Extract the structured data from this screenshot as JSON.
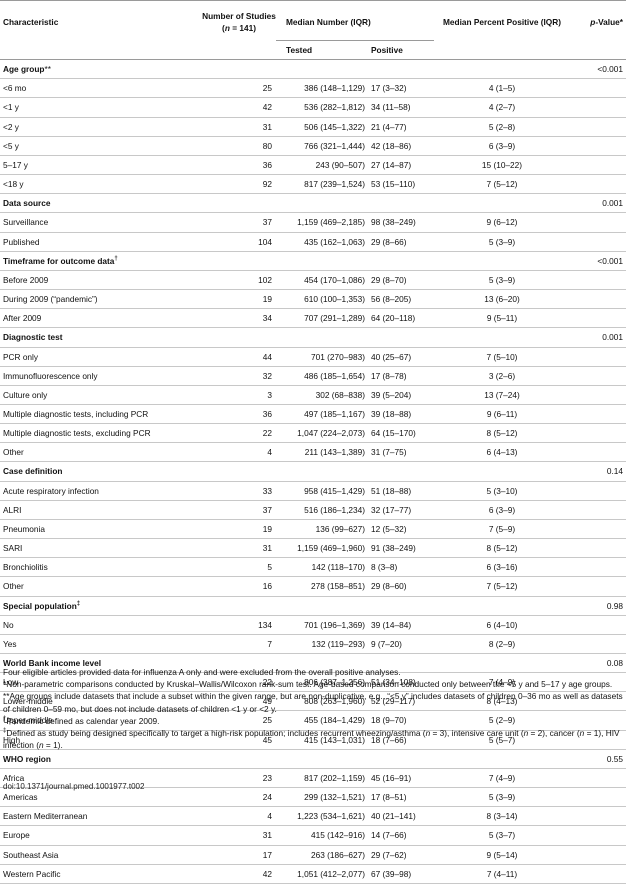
{
  "header": {
    "characteristic": "Characteristic",
    "studies_line1": "Number of Studies",
    "studies_line2_pre": "(",
    "studies_line2_n": "n",
    "studies_line2_post": " = 141)",
    "median_number": "Median Number (IQR)",
    "tested": "Tested",
    "positive": "Positive",
    "median_percent": "Median Percent Positive (IQR)",
    "pvalue_p": "p",
    "pvalue_rest": "-Value*"
  },
  "sections": [
    {
      "title": "Age group",
      "mark": "**",
      "pvalue": "<0.001",
      "rows": [
        {
          "label": "<6 mo",
          "n": "25",
          "tested": "386 (148–1,129)",
          "positive": "17 (3–32)",
          "pct": "4 (1–5)"
        },
        {
          "label": "<1 y",
          "n": "42",
          "tested": "536 (282–1,812)",
          "positive": "34 (11–58)",
          "pct": "4 (2–7)"
        },
        {
          "label": "<2 y",
          "n": "31",
          "tested": "506 (145–1,322)",
          "positive": "21 (4–77)",
          "pct": "5 (2–8)"
        },
        {
          "label": "<5 y",
          "n": "80",
          "tested": "766 (321–1,444)",
          "positive": "42 (18–86)",
          "pct": "6 (3–9)"
        },
        {
          "label": "5–17 y",
          "n": "36",
          "tested": "243 (90–507)",
          "positive": "27 (14–87)",
          "pct": "15 (10–22)"
        },
        {
          "label": "<18 y",
          "n": "92",
          "tested": "817 (239–1,524)",
          "positive": "53 (15–110)",
          "pct": "7 (5–12)"
        }
      ]
    },
    {
      "title": "Data source",
      "mark": "",
      "pvalue": "0.001",
      "rows": [
        {
          "label": "Surveillance",
          "n": "37",
          "tested": "1,159 (469–2,185)",
          "positive": "98 (38–249)",
          "pct": "9 (6–12)"
        },
        {
          "label": "Published",
          "n": "104",
          "tested": "435 (162–1,063)",
          "positive": "29 (8–66)",
          "pct": "5 (3–9)"
        }
      ]
    },
    {
      "title": "Timeframe for outcome data",
      "mark": "†",
      "pvalue": "<0.001",
      "rows": [
        {
          "label": "Before 2009",
          "n": "102",
          "tested": "454 (170–1,086)",
          "positive": "29 (8–70)",
          "pct": "5 (3–9)"
        },
        {
          "label": "During 2009 (“pandemic”)",
          "n": "19",
          "tested": "610 (100–1,353)",
          "positive": "56 (8–205)",
          "pct": "13 (6–20)"
        },
        {
          "label": "After 2009",
          "n": "34",
          "tested": "707 (291–1,289)",
          "positive": "64 (20–118)",
          "pct": "9 (5–11)"
        }
      ]
    },
    {
      "title": "Diagnostic test",
      "mark": "",
      "pvalue": "0.001",
      "rows": [
        {
          "label": "PCR only",
          "n": "44",
          "tested": "701 (270–983)",
          "positive": "40 (25–67)",
          "pct": "7 (5–10)"
        },
        {
          "label": "Immunofluorescence only",
          "n": "32",
          "tested": "486 (185–1,654)",
          "positive": "17 (8–78)",
          "pct": "3 (2–6)"
        },
        {
          "label": "Culture only",
          "n": "3",
          "tested": "302 (68–838)",
          "positive": "39 (5–204)",
          "pct": "13 (7–24)"
        },
        {
          "label": "Multiple diagnostic tests, including PCR",
          "n": "36",
          "tested": "497 (185–1,167)",
          "positive": "39 (18–88)",
          "pct": "9 (6–11)"
        },
        {
          "label": "Multiple diagnostic tests, excluding PCR",
          "n": "22",
          "tested": "1,047 (224–2,073)",
          "positive": "64 (15–170)",
          "pct": "8 (5–12)"
        },
        {
          "label": "Other",
          "n": "4",
          "tested": "211 (143–1,389)",
          "positive": "31 (7–75)",
          "pct": "6 (4–13)"
        }
      ]
    },
    {
      "title": "Case definition",
      "mark": "",
      "pvalue": "0.14",
      "rows": [
        {
          "label": "Acute respiratory infection",
          "n": "33",
          "tested": "958 (415–1,429)",
          "positive": "51 (18–88)",
          "pct": "5 (3–10)"
        },
        {
          "label": "ALRI",
          "n": "37",
          "tested": "516 (186–1,234)",
          "positive": "32 (17–77)",
          "pct": "6 (3–9)"
        },
        {
          "label": "Pneumonia",
          "n": "19",
          "tested": "136 (99–627)",
          "positive": "12 (5–32)",
          "pct": "7 (5–9)"
        },
        {
          "label": "SARI",
          "n": "31",
          "tested": "1,159 (469–1,960)",
          "positive": "91 (38–249)",
          "pct": "8 (5–12)"
        },
        {
          "label": "Bronchiolitis",
          "n": "5",
          "tested": "142 (118–170)",
          "positive": "8 (3–8)",
          "pct": "6 (3–16)"
        },
        {
          "label": "Other",
          "n": "16",
          "tested": "278 (158–851)",
          "positive": "29 (8–60)",
          "pct": "7 (5–12)"
        }
      ]
    },
    {
      "title": "Special population",
      "mark": "‡",
      "pvalue": "0.98",
      "rows": [
        {
          "label": "No",
          "n": "134",
          "tested": "701 (196–1,369)",
          "positive": "39 (14–84)",
          "pct": "6 (4–10)"
        },
        {
          "label": "Yes",
          "n": "7",
          "tested": "132 (119–293)",
          "positive": "9 (7–20)",
          "pct": "8 (2–9)"
        }
      ]
    },
    {
      "title": "World Bank income level",
      "mark": "",
      "pvalue": "0.08",
      "rows": [
        {
          "label": "Low",
          "n": "22",
          "tested": "806 (387–1,256)",
          "positive": "51 (34–108)",
          "pct": "7 (4–9)"
        },
        {
          "label": "Lower-middle",
          "n": "49",
          "tested": "808 (263–1,960)",
          "positive": "52 (29–117)",
          "pct": "8 (4–13)"
        },
        {
          "label": "Upper-middle",
          "n": "25",
          "tested": "455 (184–1,429)",
          "positive": "18 (9–70)",
          "pct": "5 (2–9)"
        },
        {
          "label": "High",
          "n": "45",
          "tested": "415 (143–1,031)",
          "positive": "18 (7–66)",
          "pct": "5 (5–7)"
        }
      ]
    },
    {
      "title": "WHO region",
      "mark": "",
      "pvalue": "0.55",
      "rows": [
        {
          "label": "Africa",
          "n": "23",
          "tested": "817 (202–1,159)",
          "positive": "45 (16–91)",
          "pct": "7 (4–9)"
        },
        {
          "label": "Americas",
          "n": "24",
          "tested": "299 (132–1,521)",
          "positive": "17 (8–51)",
          "pct": "5 (3–9)"
        },
        {
          "label": "Eastern Mediterranean",
          "n": "4",
          "tested": "1,223 (534–1,621)",
          "positive": "40 (21–141)",
          "pct": "8 (3–14)"
        },
        {
          "label": "Europe",
          "n": "31",
          "tested": "415 (142–916)",
          "positive": "14 (7–66)",
          "pct": "5 (3–7)"
        },
        {
          "label": "Southeast Asia",
          "n": "17",
          "tested": "263 (186–627)",
          "positive": "29 (7–62)",
          "pct": "9 (5–14)"
        },
        {
          "label": "Western Pacific",
          "n": "42",
          "tested": "1,051 (412–2,077)",
          "positive": "67 (39–98)",
          "pct": "7 (4–11)"
        }
      ]
    }
  ],
  "footnotes": {
    "intro": "Four eligible articles provided data for influenza A only and were excluded from the overall positive analyses.",
    "star": "*Non-parametric comparisons conducted by Kruskal–Wallis/Wilcoxon rank-sum test. Age-based comparison conducted only between the <5 y and 5–17 y age groups.",
    "double_star": "**Age groups include datasets that include a subset within the given range, but are non-duplicative, e.g., “<5 y” includes datasets of children 0–36 mo as well as datasets of children 0–59 mo, but does not include datasets of children <1 y or <2 y.",
    "dagger_mark": "†",
    "dagger": "Pandemic defined as calendar year 2009.",
    "ddagger_mark": "‡",
    "ddagger_pre": "Defined as study being designed specifically to target a high-risk population; includes recurrent wheezing/asthma (",
    "ddagger_n1": "n",
    "ddagger_mid1": " = 3), intensive care unit (",
    "ddagger_n2": "n",
    "ddagger_mid2": " = 2), cancer (",
    "ddagger_n3": "n",
    "ddagger_mid3": " = 1), HIV infection (",
    "ddagger_n4": "n",
    "ddagger_post": " = 1)."
  },
  "doi": "doi:10.1371/journal.pmed.1001977.t002"
}
